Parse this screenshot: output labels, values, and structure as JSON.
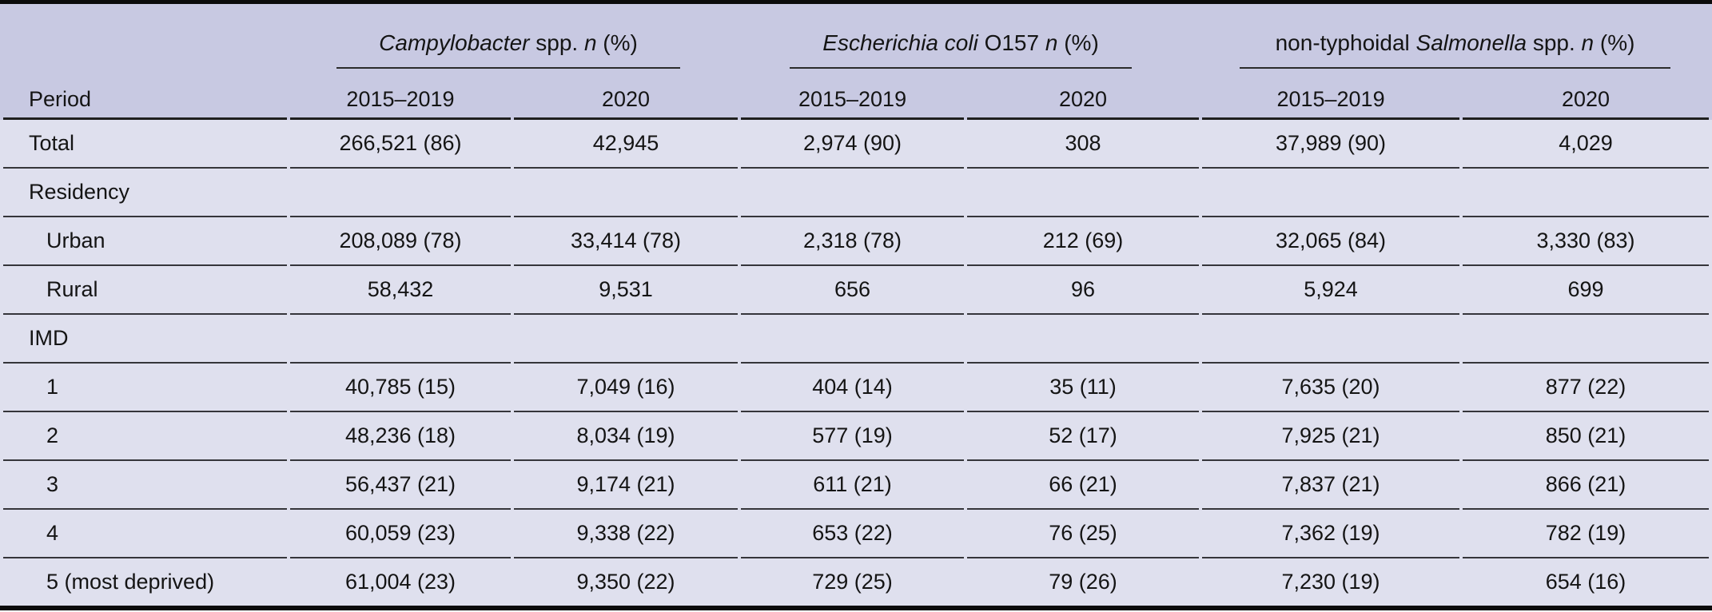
{
  "meta": {
    "colors": {
      "header_bg": "#c8c9e2",
      "body_bg": "#dfe0ee",
      "rule_dark": "#35353a",
      "frame_black": "#0b0b0b",
      "text": "#141414"
    }
  },
  "table": {
    "period_label": "Period",
    "groups": [
      {
        "key": "campylobacter",
        "title_parts": [
          {
            "t": "Campylobacter",
            "i": true
          },
          {
            "t": " spp. ",
            "i": false
          },
          {
            "t": "n",
            "i": true
          },
          {
            "t": " (%)",
            "i": false
          }
        ],
        "subheaders": [
          "2015–2019",
          "2020"
        ]
      },
      {
        "key": "ecoli-o157",
        "title_parts": [
          {
            "t": "Escherichia coli",
            "i": true
          },
          {
            "t": " O157 ",
            "i": false
          },
          {
            "t": "n",
            "i": true
          },
          {
            "t": " (%)",
            "i": false
          }
        ],
        "subheaders": [
          "2015–2019",
          "2020"
        ]
      },
      {
        "key": "salmonella",
        "title_parts": [
          {
            "t": "non-typhoidal ",
            "i": false
          },
          {
            "t": "Salmonella",
            "i": true
          },
          {
            "t": " spp. ",
            "i": false
          },
          {
            "t": "n",
            "i": true
          },
          {
            "t": " (%)",
            "i": false
          }
        ],
        "subheaders": [
          "2015–2019",
          "2020"
        ]
      }
    ],
    "rows": [
      {
        "key": "total",
        "type": "data",
        "label": "Total",
        "indent": false,
        "values": [
          "266,521 (86)",
          "42,945",
          "2,974 (90)",
          "308",
          "37,989 (90)",
          "4,029"
        ]
      },
      {
        "key": "residency",
        "type": "section",
        "label": "Residency"
      },
      {
        "key": "urban",
        "type": "data",
        "label": "Urban",
        "indent": true,
        "values": [
          "208,089 (78)",
          "33,414 (78)",
          "2,318 (78)",
          "212 (69)",
          "32,065 (84)",
          "3,330 (83)"
        ]
      },
      {
        "key": "rural",
        "type": "data",
        "label": "Rural",
        "indent": true,
        "values": [
          "58,432",
          "9,531",
          "656",
          "96",
          "5,924",
          "699"
        ]
      },
      {
        "key": "imd",
        "type": "section",
        "label": "IMD"
      },
      {
        "key": "imd-1",
        "type": "data",
        "label": "1",
        "indent": true,
        "values": [
          "40,785 (15)",
          "7,049 (16)",
          "404 (14)",
          "35 (11)",
          "7,635 (20)",
          "877 (22)"
        ]
      },
      {
        "key": "imd-2",
        "type": "data",
        "label": "2",
        "indent": true,
        "values": [
          "48,236 (18)",
          "8,034 (19)",
          "577 (19)",
          "52 (17)",
          "7,925 (21)",
          "850 (21)"
        ]
      },
      {
        "key": "imd-3",
        "type": "data",
        "label": "3",
        "indent": true,
        "values": [
          "56,437 (21)",
          "9,174 (21)",
          "611 (21)",
          "66 (21)",
          "7,837 (21)",
          "866 (21)"
        ]
      },
      {
        "key": "imd-4",
        "type": "data",
        "label": "4",
        "indent": true,
        "values": [
          "60,059 (23)",
          "9,338 (22)",
          "653 (22)",
          "76 (25)",
          "7,362 (19)",
          "782 (19)"
        ]
      },
      {
        "key": "imd-5",
        "type": "data",
        "label": "5 (most deprived)",
        "indent": true,
        "values": [
          "61,004 (23)",
          "9,350 (22)",
          "729 (25)",
          "79 (26)",
          "7,230 (19)",
          "654 (16)"
        ]
      }
    ]
  }
}
